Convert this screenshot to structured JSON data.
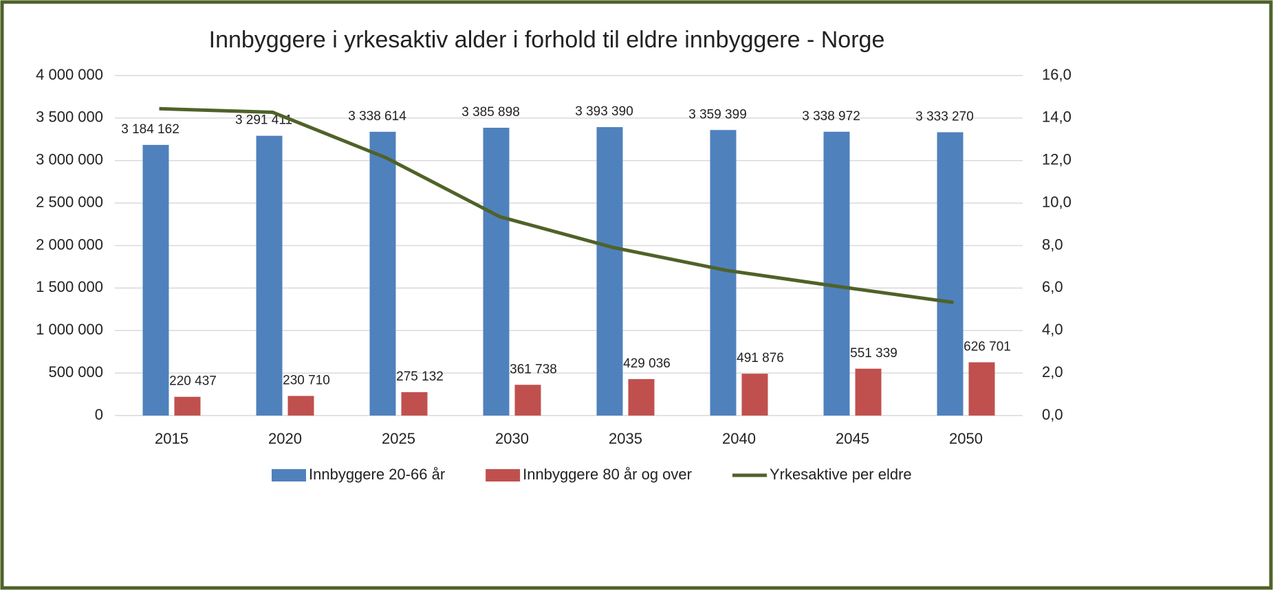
{
  "chart_data": {
    "type": "bar_line",
    "title": "Innbyggere i yrkesaktiv alder i forhold til eldre innbyggere - Norge",
    "categories": [
      "2015",
      "2020",
      "2025",
      "2030",
      "2035",
      "2040",
      "2045",
      "2050"
    ],
    "series": [
      {
        "name": "Innbyggere 20-66 år",
        "color": "#4f81bd",
        "type": "bar",
        "values": [
          3184162,
          3291411,
          3338614,
          3385898,
          3393390,
          3359399,
          3338972,
          3333270
        ],
        "value_labels": [
          "3 184 162",
          "3 291 411",
          "3 338 614",
          "3 385 898",
          "3 393 390",
          "3 359 399",
          "3 338 972",
          "3 333 270"
        ]
      },
      {
        "name": "Innbyggere 80 år og over",
        "color": "#c0504d",
        "type": "bar",
        "values": [
          220437,
          230710,
          275132,
          361738,
          429036,
          491876,
          551339,
          626701
        ],
        "value_labels": [
          "220 437",
          "230 710",
          "275 132",
          "361 738",
          "429 036",
          "491 876",
          "551 339",
          "626 701"
        ]
      },
      {
        "name": "Yrkesaktive per eldre",
        "color": "#4f6228",
        "type": "line",
        "axis": "y2",
        "values": [
          14.44,
          14.27,
          12.13,
          9.36,
          7.91,
          6.83,
          6.06,
          5.32
        ]
      }
    ],
    "ylim": [
      0,
      4000000
    ],
    "yticks": [
      0,
      {
        "value": 500000,
        "label": "500 000"
      },
      {
        "value": 1000000,
        "label": "1 000 000"
      },
      {
        "value": 1500000,
        "label": "1 500 000"
      },
      {
        "value": 2000000,
        "label": "2 000 000"
      },
      {
        "value": 2500000,
        "label": "2 500 000"
      },
      {
        "value": 3000000,
        "label": "3 000 000"
      },
      {
        "value": 3500000,
        "label": "3 500 000"
      },
      {
        "value": 4000000,
        "label": "4 000 000"
      }
    ],
    "y2lim": [
      0,
      16
    ],
    "y2ticks": [
      {
        "value": 0,
        "label": "0,0"
      },
      {
        "value": 2,
        "label": "2,0"
      },
      {
        "value": 4,
        "label": "4,0"
      },
      {
        "value": 6,
        "label": "6,0"
      },
      {
        "value": 8,
        "label": "8,0"
      },
      {
        "value": 10,
        "label": "10,0"
      },
      {
        "value": 12,
        "label": "12,0"
      },
      {
        "value": 14,
        "label": "14,0"
      },
      {
        "value": 16,
        "label": "16,0"
      }
    ],
    "grid": true,
    "legend": "bottom"
  }
}
